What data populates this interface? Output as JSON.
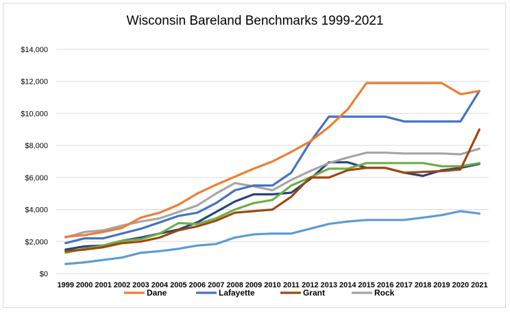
{
  "chart_data": {
    "type": "line",
    "title": "Wisconsin Bareland Benchmarks 1999-2021",
    "xlabel": "",
    "ylabel": "",
    "x": [
      "1999",
      "2000",
      "2001",
      "2002",
      "2003",
      "2004",
      "2005",
      "2006",
      "2007",
      "2008",
      "2009",
      "2010",
      "2011",
      "2012",
      "2013",
      "2014",
      "2015",
      "2016",
      "2017",
      "2018",
      "2019",
      "2020",
      "2021"
    ],
    "ylim": [
      0,
      14000
    ],
    "yticks": [
      0,
      2000,
      4000,
      6000,
      8000,
      10000,
      12000,
      14000
    ],
    "ytick_labels": [
      "$0",
      "$2,000",
      "$4,000",
      "$6,000",
      "$8,000",
      "$10,000",
      "$12,000",
      "$14,000"
    ],
    "grid": "horizontal",
    "legend_position": "bottom",
    "series": [
      {
        "name": "Dane",
        "color": "#ED7D31",
        "in_legend": true,
        "values": [
          2300,
          2400,
          2600,
          2850,
          3500,
          3800,
          4300,
          5000,
          5550,
          6050,
          6550,
          7000,
          7600,
          8250,
          9150,
          10250,
          11900,
          11900,
          11900,
          11900,
          11900,
          11200,
          11400
        ]
      },
      {
        "name": "Lafayette",
        "color": "#4472C4",
        "in_legend": true,
        "values": [
          1900,
          2200,
          2200,
          2500,
          2800,
          3200,
          3600,
          3800,
          4400,
          5200,
          5500,
          5500,
          6300,
          8200,
          9800,
          9800,
          9800,
          9800,
          9500,
          9500,
          9500,
          9500,
          11400
        ]
      },
      {
        "name": "Grant",
        "color": "#9E480E",
        "in_legend": true,
        "values": [
          1400,
          1500,
          1650,
          1900,
          2000,
          2250,
          2700,
          2950,
          3300,
          3800,
          3900,
          4000,
          4800,
          6000,
          6000,
          6450,
          6600,
          6600,
          6300,
          6350,
          6400,
          6500,
          9000
        ]
      },
      {
        "name": "Rock",
        "color": "#A5A5A5",
        "in_legend": true,
        "values": [
          2250,
          2600,
          2700,
          3000,
          3250,
          3450,
          3850,
          4250,
          5000,
          5650,
          5450,
          5200,
          5850,
          6400,
          6900,
          7250,
          7550,
          7550,
          7500,
          7500,
          7500,
          7450,
          7800
        ]
      },
      {
        "name": "",
        "color": "#70AD47",
        "in_legend": false,
        "values": [
          1300,
          1550,
          1750,
          2050,
          2150,
          2500,
          3150,
          3100,
          3450,
          4000,
          4400,
          4600,
          5500,
          6000,
          6550,
          6550,
          6900,
          6900,
          6900,
          6900,
          6700,
          6700,
          6900
        ]
      },
      {
        "name": "",
        "color": "#5B9BD5",
        "in_legend": false,
        "values": [
          600,
          700,
          850,
          1000,
          1300,
          1400,
          1550,
          1750,
          1850,
          2250,
          2450,
          2500,
          2500,
          2800,
          3100,
          3250,
          3350,
          3350,
          3350,
          3500,
          3650,
          3900,
          3750
        ]
      },
      {
        "name": "",
        "color": "#264478",
        "in_legend": false,
        "values": [
          1500,
          1700,
          1750,
          2050,
          2250,
          2500,
          2750,
          3200,
          3850,
          4500,
          4950,
          4950,
          5050,
          5900,
          6950,
          6950,
          6600,
          6600,
          6300,
          6100,
          6450,
          6600,
          6850
        ]
      }
    ]
  }
}
